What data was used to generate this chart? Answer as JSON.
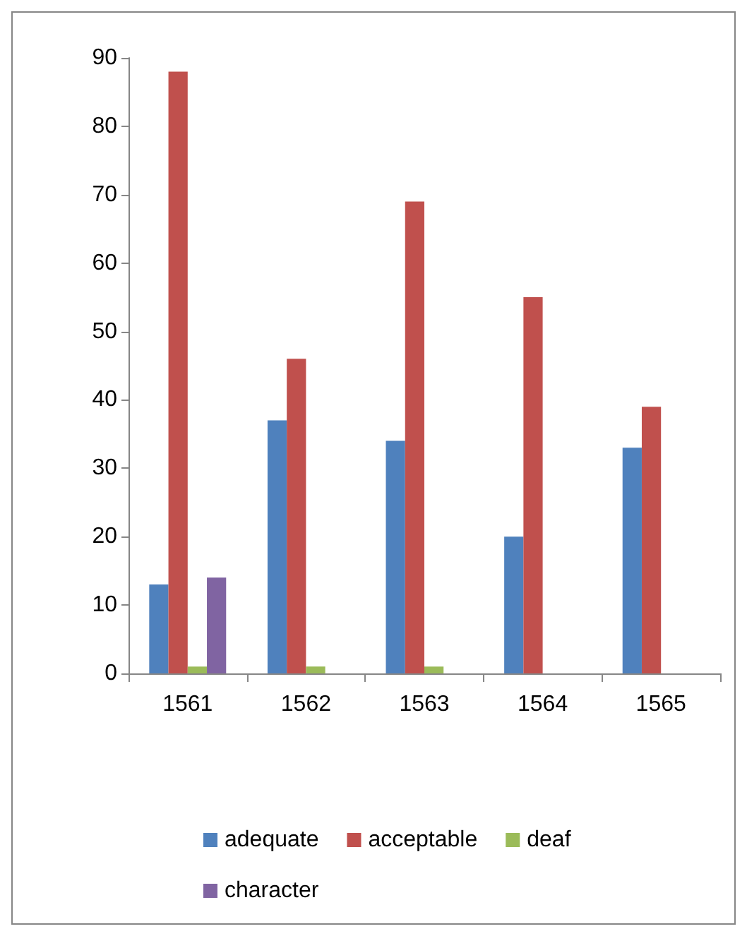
{
  "chart_data": {
    "type": "bar",
    "categories": [
      "1561",
      "1562",
      "1563",
      "1564",
      "1565"
    ],
    "series": [
      {
        "name": "adequate",
        "color": "#4f81bd",
        "values": [
          13,
          37,
          34,
          20,
          33
        ]
      },
      {
        "name": "acceptable",
        "color": "#c0504d",
        "values": [
          88,
          46,
          69,
          55,
          39
        ]
      },
      {
        "name": "deaf",
        "color": "#9bbb59",
        "values": [
          1,
          1,
          1,
          null,
          null
        ]
      },
      {
        "name": "character",
        "color": "#8064a2",
        "values": [
          14,
          null,
          null,
          null,
          null
        ]
      }
    ],
    "ylim": [
      0,
      90
    ],
    "yticks": [
      0,
      10,
      20,
      30,
      40,
      50,
      60,
      70,
      80,
      90
    ],
    "grid": false,
    "legend": "bottom"
  }
}
